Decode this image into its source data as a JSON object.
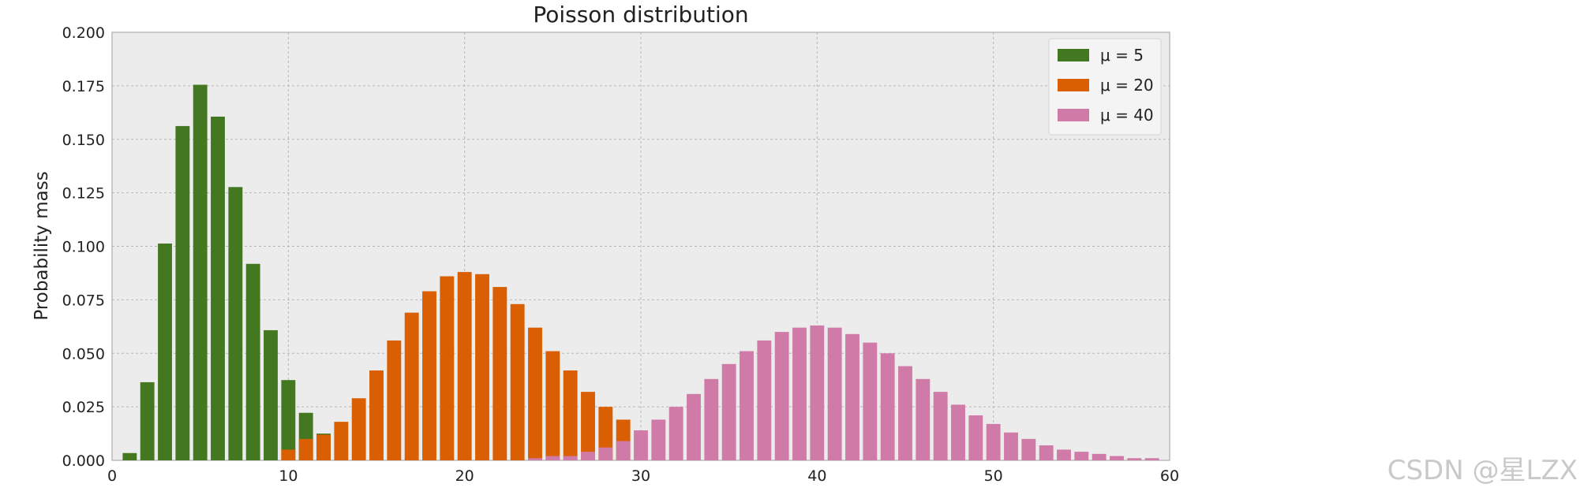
{
  "chart_data": {
    "type": "bar",
    "title": "Poisson distribution",
    "xlabel": "",
    "ylabel": "Probability mass",
    "xlim": [
      0,
      60
    ],
    "ylim": [
      0,
      0.2
    ],
    "xticks": [
      "0",
      "10",
      "20",
      "30",
      "40",
      "50",
      "60"
    ],
    "yticks": [
      "0.000",
      "0.025",
      "0.050",
      "0.075",
      "0.100",
      "0.125",
      "0.150",
      "0.175",
      "0.200"
    ],
    "grid": true,
    "legend_position": "top-right",
    "background_color": "#ececec",
    "series": [
      {
        "name": "μ = 5",
        "color": "#437821",
        "x": [
          1,
          2,
          3,
          4,
          5,
          6,
          7,
          8,
          9,
          10,
          11,
          12
        ],
        "values": [
          0.0034,
          0.0365,
          0.1013,
          0.1562,
          0.1755,
          0.1606,
          0.1277,
          0.0918,
          0.0608,
          0.0375,
          0.0222,
          0.0125
        ]
      },
      {
        "name": "μ = 20",
        "color": "#d95f02",
        "x": [
          10,
          11,
          12,
          13,
          14,
          15,
          16,
          17,
          18,
          19,
          20,
          21,
          22,
          23,
          24,
          25,
          26,
          27,
          28,
          29
        ],
        "values": [
          0.005,
          0.01,
          0.012,
          0.018,
          0.029,
          0.042,
          0.056,
          0.069,
          0.079,
          0.086,
          0.088,
          0.087,
          0.081,
          0.073,
          0.062,
          0.051,
          0.042,
          0.032,
          0.025,
          0.019
        ]
      },
      {
        "name": "μ = 40",
        "color": "#d07aa7",
        "x": [
          24,
          25,
          26,
          27,
          28,
          29,
          30,
          31,
          32,
          33,
          34,
          35,
          36,
          37,
          38,
          39,
          40,
          41,
          42,
          43,
          44,
          45,
          46,
          47,
          48,
          49,
          50,
          51,
          52,
          53,
          54,
          55,
          56,
          57,
          58,
          59
        ],
        "values": [
          0.001,
          0.002,
          0.002,
          0.004,
          0.006,
          0.009,
          0.014,
          0.019,
          0.025,
          0.031,
          0.038,
          0.045,
          0.051,
          0.056,
          0.06,
          0.062,
          0.063,
          0.062,
          0.059,
          0.055,
          0.05,
          0.044,
          0.038,
          0.032,
          0.026,
          0.021,
          0.017,
          0.013,
          0.01,
          0.007,
          0.005,
          0.004,
          0.003,
          0.002,
          0.001,
          0.001
        ]
      }
    ]
  },
  "watermark": "CSDN @星LZX"
}
